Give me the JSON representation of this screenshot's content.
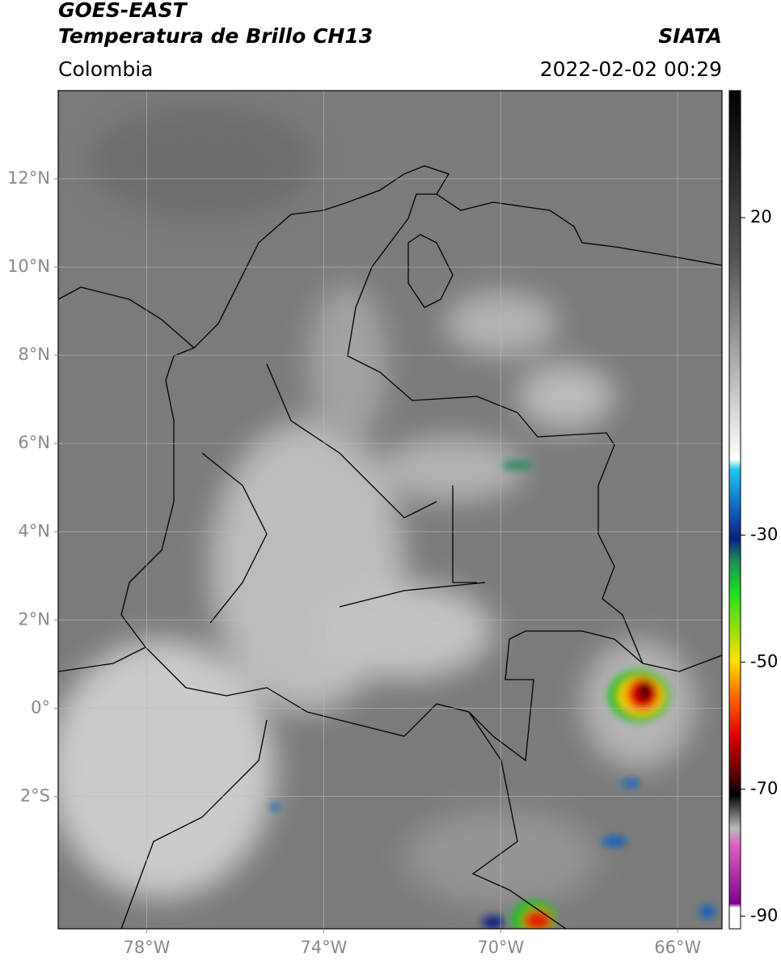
{
  "header": {
    "title": "GOES-EAST",
    "subtitle": "Temperatura de Brillo CH13",
    "region": "Colombia",
    "source": "SIATA",
    "datetime": "2022-02-02 00:29"
  },
  "map": {
    "xlim": [
      -80,
      -65
    ],
    "ylim": [
      -5,
      14
    ],
    "xticks": [
      {
        "value": -78,
        "label": "78°W"
      },
      {
        "value": -74,
        "label": "74°W"
      },
      {
        "value": -70,
        "label": "70°W"
      },
      {
        "value": -66,
        "label": "66°W"
      }
    ],
    "yticks": [
      {
        "value": 12,
        "label": "12°N"
      },
      {
        "value": 10,
        "label": "10°N"
      },
      {
        "value": 8,
        "label": "8°N"
      },
      {
        "value": 6,
        "label": "6°N"
      },
      {
        "value": 4,
        "label": "4°N"
      },
      {
        "value": 2,
        "label": "2°N"
      },
      {
        "value": 0,
        "label": "0°"
      },
      {
        "value": -2,
        "label": "2°S"
      }
    ],
    "grid": true
  },
  "colorbar": {
    "lim": [
      -92,
      40
    ],
    "ticks": [
      20,
      -30,
      -50,
      -70,
      -90
    ]
  }
}
